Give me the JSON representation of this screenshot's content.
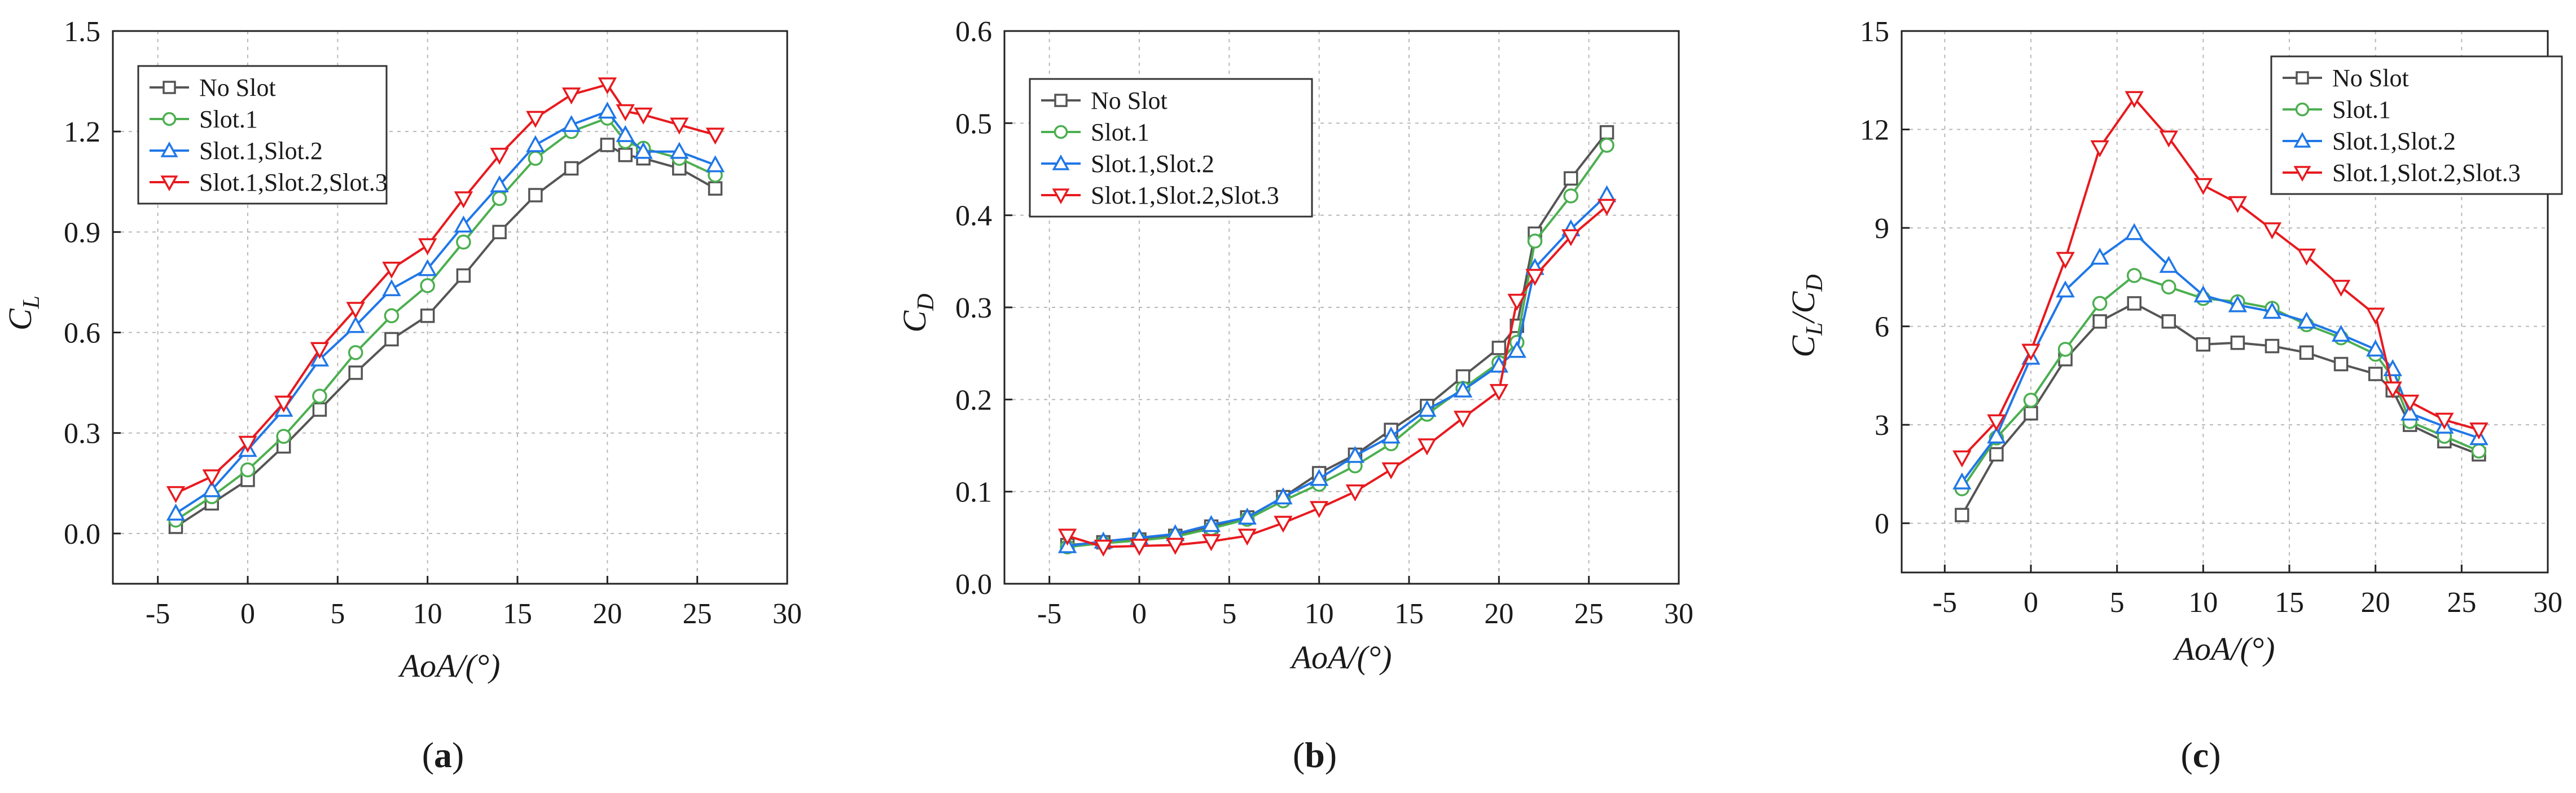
{
  "chart_data": [
    {
      "type": "line",
      "panel_label": "(a)",
      "panel_letter": "a",
      "xlabel": "AoA/(°)",
      "ylabel": "C_L",
      "ylabel_main": "C",
      "ylabel_sub": "L",
      "xlim": [
        -7.5,
        30
      ],
      "ylim": [
        -0.15,
        1.5
      ],
      "xticks": [
        -5,
        0,
        5,
        10,
        15,
        20,
        25,
        30
      ],
      "xtick_labels": [
        "-5",
        "0",
        "5",
        "10",
        "15",
        "20",
        "25",
        "30"
      ],
      "yticks": [
        0.0,
        0.3,
        0.6,
        0.9,
        1.2,
        1.5
      ],
      "ytick_labels": [
        "0.0",
        "0.3",
        "0.6",
        "0.9",
        "1.2",
        "1.5"
      ],
      "grid": true,
      "legend_position": "top-left",
      "series": [
        {
          "name": "No Slot",
          "color": "#555555",
          "marker": "square",
          "x": [
            -4,
            -2,
            0,
            2,
            4,
            6,
            8,
            10,
            12,
            14,
            16,
            18,
            20,
            21,
            22,
            24,
            26
          ],
          "y": [
            0.02,
            0.09,
            0.16,
            0.26,
            0.37,
            0.48,
            0.58,
            0.65,
            0.77,
            0.9,
            1.01,
            1.09,
            1.16,
            1.13,
            1.12,
            1.09,
            1.03
          ]
        },
        {
          "name": "Slot.1",
          "color": "#4caf50",
          "marker": "circle",
          "x": [
            -4,
            -2,
            0,
            2,
            4,
            6,
            8,
            10,
            12,
            14,
            16,
            18,
            20,
            21,
            22,
            24,
            26
          ],
          "y": [
            0.04,
            0.11,
            0.19,
            0.29,
            0.41,
            0.54,
            0.65,
            0.74,
            0.87,
            1.0,
            1.12,
            1.2,
            1.24,
            1.17,
            1.15,
            1.12,
            1.07
          ]
        },
        {
          "name": "Slot.1,Slot.2",
          "color": "#1f77e8",
          "marker": "triangle-up",
          "x": [
            -4,
            -2,
            0,
            2,
            4,
            6,
            8,
            10,
            12,
            14,
            16,
            18,
            20,
            21,
            22,
            24,
            26
          ],
          "y": [
            0.06,
            0.13,
            0.25,
            0.37,
            0.52,
            0.62,
            0.73,
            0.79,
            0.92,
            1.04,
            1.16,
            1.22,
            1.26,
            1.19,
            1.14,
            1.14,
            1.1
          ]
        },
        {
          "name": "Slot.1,Slot.2,Slot.3",
          "color": "#e8191e",
          "marker": "triangle-down",
          "x": [
            -4,
            -2,
            0,
            2,
            4,
            6,
            8,
            10,
            12,
            14,
            16,
            18,
            20,
            21,
            22,
            24,
            26
          ],
          "y": [
            0.12,
            0.17,
            0.27,
            0.39,
            0.55,
            0.67,
            0.79,
            0.86,
            1.0,
            1.13,
            1.24,
            1.31,
            1.34,
            1.26,
            1.25,
            1.22,
            1.19
          ]
        }
      ]
    },
    {
      "type": "line",
      "panel_label": "(b)",
      "panel_letter": "b",
      "xlabel": "AoA/(°)",
      "ylabel": "C_D",
      "ylabel_main": "C",
      "ylabel_sub": "D",
      "xlim": [
        -7.5,
        30
      ],
      "ylim": [
        0.0,
        0.6
      ],
      "xticks": [
        -5,
        0,
        5,
        10,
        15,
        20,
        25,
        30
      ],
      "xtick_labels": [
        "-5",
        "0",
        "5",
        "10",
        "15",
        "20",
        "25",
        "30"
      ],
      "yticks": [
        0.0,
        0.1,
        0.2,
        0.3,
        0.4,
        0.5,
        0.6
      ],
      "ytick_labels": [
        "0.0",
        "0.1",
        "0.2",
        "0.3",
        "0.4",
        "0.5",
        "0.6"
      ],
      "grid": true,
      "legend_position": "top-left",
      "series": [
        {
          "name": "No Slot",
          "color": "#555555",
          "marker": "square",
          "x": [
            -4,
            -2,
            0,
            2,
            4,
            6,
            8,
            10,
            12,
            14,
            16,
            18,
            20,
            21,
            22,
            24,
            26
          ],
          "y": [
            0.042,
            0.045,
            0.048,
            0.052,
            0.062,
            0.072,
            0.094,
            0.12,
            0.14,
            0.167,
            0.193,
            0.225,
            0.256,
            0.28,
            0.38,
            0.44,
            0.49
          ]
        },
        {
          "name": "Slot.1",
          "color": "#4caf50",
          "marker": "circle",
          "x": [
            -4,
            -2,
            0,
            2,
            4,
            6,
            8,
            10,
            12,
            14,
            16,
            18,
            20,
            21,
            22,
            24,
            26
          ],
          "y": [
            0.04,
            0.044,
            0.047,
            0.051,
            0.06,
            0.07,
            0.09,
            0.108,
            0.128,
            0.152,
            0.184,
            0.212,
            0.24,
            0.262,
            0.372,
            0.421,
            0.476
          ]
        },
        {
          "name": "Slot.1,Slot.2",
          "color": "#1f77e8",
          "marker": "triangle-up",
          "x": [
            -4,
            -2,
            0,
            2,
            4,
            6,
            8,
            10,
            12,
            14,
            16,
            18,
            20,
            21,
            22,
            24,
            26
          ],
          "y": [
            0.041,
            0.046,
            0.05,
            0.054,
            0.064,
            0.072,
            0.094,
            0.114,
            0.139,
            0.16,
            0.189,
            0.21,
            0.237,
            0.253,
            0.343,
            0.385,
            0.422
          ]
        },
        {
          "name": "Slot.1,Slot.2,Slot.3",
          "color": "#e8191e",
          "marker": "triangle-down",
          "x": [
            -4,
            -2,
            0,
            2,
            4,
            6,
            8,
            10,
            12,
            14,
            16,
            18,
            20,
            21,
            22,
            24,
            26
          ],
          "y": [
            0.052,
            0.04,
            0.041,
            0.042,
            0.046,
            0.052,
            0.066,
            0.082,
            0.1,
            0.124,
            0.15,
            0.18,
            0.209,
            0.307,
            0.334,
            0.377,
            0.41
          ]
        }
      ]
    },
    {
      "type": "line",
      "panel_label": "(c)",
      "panel_letter": "c",
      "xlabel": "AoA/(°)",
      "ylabel": "C_L/C_D",
      "ylabel_main": "C",
      "ylabel_sub": "L",
      "ylabel_mid": "/C",
      "ylabel_sub2": "D",
      "xlim": [
        -7.5,
        30
      ],
      "ylim": [
        -1.5,
        15
      ],
      "xticks": [
        -5,
        0,
        5,
        10,
        15,
        20,
        25,
        30
      ],
      "xtick_labels": [
        "-5",
        "0",
        "5",
        "10",
        "15",
        "20",
        "25",
        "30"
      ],
      "yticks": [
        0,
        3,
        6,
        9,
        12,
        15
      ],
      "ytick_labels": [
        "0",
        "3",
        "6",
        "9",
        "12",
        "15"
      ],
      "grid": true,
      "legend_position": "top-right",
      "series": [
        {
          "name": "No Slot",
          "color": "#555555",
          "marker": "square",
          "x": [
            -4,
            -2,
            0,
            2,
            4,
            6,
            8,
            10,
            12,
            14,
            16,
            18,
            20,
            21,
            22,
            24,
            26
          ],
          "y": [
            0.25,
            2.1,
            3.35,
            5.0,
            6.15,
            6.7,
            6.15,
            5.45,
            5.5,
            5.4,
            5.2,
            4.85,
            4.55,
            4.05,
            3.0,
            2.5,
            2.1
          ]
        },
        {
          "name": "Slot.1",
          "color": "#4caf50",
          "marker": "circle",
          "x": [
            -4,
            -2,
            0,
            2,
            4,
            6,
            8,
            10,
            12,
            14,
            16,
            18,
            20,
            21,
            22,
            24,
            26
          ],
          "y": [
            1.05,
            2.6,
            3.75,
            5.3,
            6.7,
            7.55,
            7.2,
            6.85,
            6.75,
            6.55,
            6.05,
            5.65,
            5.15,
            4.45,
            3.1,
            2.65,
            2.2
          ]
        },
        {
          "name": "Slot.1,Slot.2",
          "color": "#1f77e8",
          "marker": "triangle-up",
          "x": [
            -4,
            -2,
            0,
            2,
            4,
            6,
            8,
            10,
            12,
            14,
            16,
            18,
            20,
            21,
            22,
            24,
            26
          ],
          "y": [
            1.25,
            2.65,
            5.05,
            7.1,
            8.1,
            8.85,
            7.85,
            6.95,
            6.65,
            6.45,
            6.15,
            5.75,
            5.3,
            4.7,
            3.35,
            2.95,
            2.6
          ]
        },
        {
          "name": "Slot.1,Slot.2,Slot.3",
          "color": "#e8191e",
          "marker": "triangle-down",
          "x": [
            -4,
            -2,
            0,
            2,
            4,
            6,
            8,
            10,
            12,
            14,
            16,
            18,
            20,
            21,
            22,
            24,
            26
          ],
          "y": [
            2.0,
            3.1,
            5.25,
            8.05,
            11.45,
            12.95,
            11.75,
            10.3,
            9.75,
            8.95,
            8.15,
            7.2,
            6.35,
            4.1,
            3.7,
            3.15,
            2.85
          ]
        }
      ]
    }
  ]
}
